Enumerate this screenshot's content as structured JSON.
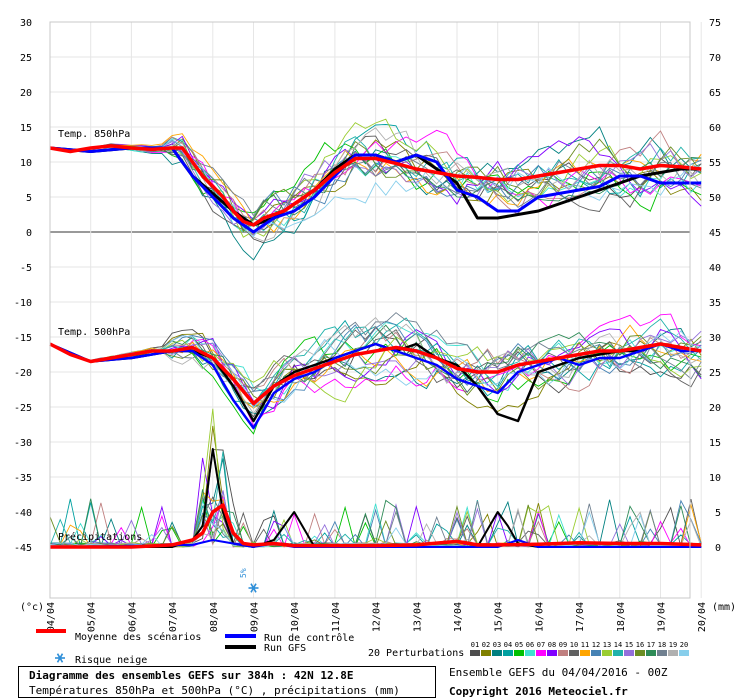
{
  "chart_data": {
    "type": "line",
    "x_labels": [
      "04/04",
      "05/04",
      "06/04",
      "07/04",
      "08/04",
      "09/04",
      "10/04",
      "11/04",
      "12/04",
      "13/04",
      "14/04",
      "15/04",
      "16/04",
      "17/04",
      "18/04",
      "19/04",
      "20/04"
    ],
    "left_axis": {
      "unit": "(°c)",
      "ticks": [
        30,
        25,
        20,
        15,
        10,
        5,
        0,
        -5,
        -10,
        -15,
        -20,
        -25,
        -30,
        -35,
        -40,
        -45
      ],
      "range": [
        -45,
        30
      ]
    },
    "right_axis": {
      "unit": "(mm)",
      "ticks": [
        75,
        70,
        65,
        60,
        55,
        50,
        45,
        40,
        35,
        30,
        25,
        20,
        15,
        10,
        5,
        0
      ],
      "range": [
        0,
        75
      ]
    },
    "panel_labels": {
      "t850": "Temp. 850hPa",
      "t500": "Temp. 500hPa",
      "precip": "Précipitations"
    },
    "snow_marker": {
      "text": "5%",
      "day": 5.0
    },
    "series": {
      "t850_mean": {
        "name": "Moyenne des scénarios",
        "color": "#ff0000",
        "days": [
          0,
          0.5,
          1,
          1.5,
          2,
          2.5,
          3,
          3.25,
          3.5,
          3.75,
          4,
          4.25,
          4.5,
          4.75,
          5,
          5.25,
          5.5,
          5.75,
          6,
          6.5,
          7,
          7.5,
          8,
          8.5,
          9,
          9.5,
          10,
          10.5,
          11,
          11.5,
          12,
          12.5,
          13,
          13.5,
          14,
          14.5,
          15,
          15.5,
          16
        ],
        "values": [
          12,
          11.5,
          12,
          12.3,
          12,
          11.8,
          12,
          12,
          10,
          8,
          6.5,
          5,
          3,
          1.5,
          1,
          2,
          2.5,
          3,
          4,
          6,
          8.5,
          10.5,
          10.5,
          9.8,
          9,
          8.5,
          8,
          7.8,
          7.5,
          7.5,
          8,
          8.5,
          9,
          9.5,
          9.5,
          9,
          9.5,
          9.3,
          9
        ]
      },
      "t850_control": {
        "name": "Run de contrôle",
        "color": "#0000ff",
        "days": [
          0,
          1,
          2,
          3,
          3.5,
          4,
          4.5,
          5,
          5.5,
          6,
          6.5,
          7,
          7.5,
          8,
          8.5,
          9,
          9.5,
          10,
          10.5,
          11,
          11.5,
          12,
          12.5,
          13,
          13.5,
          14,
          14.5,
          15,
          15.5,
          16
        ],
        "values": [
          12,
          11.5,
          12,
          12,
          8,
          5,
          2,
          0,
          2,
          3,
          5,
          8,
          11,
          11,
          10,
          11,
          10,
          6,
          5,
          3,
          3,
          5,
          5.5,
          6,
          6.5,
          8,
          8,
          7,
          7,
          7
        ]
      },
      "t850_gfs": {
        "name": "Run GFS",
        "color": "#000000",
        "days": [
          0,
          1,
          2,
          3,
          3.5,
          4,
          4.5,
          5,
          5.5,
          6,
          6.5,
          7,
          7.5,
          8,
          8.5,
          9,
          9.5,
          10,
          10.5,
          11,
          11.5,
          12,
          12.5,
          13,
          13.5,
          14,
          14.5,
          15,
          15.5,
          16
        ],
        "values": [
          12,
          11.5,
          12,
          12,
          8,
          5.5,
          3,
          1,
          2,
          4,
          6,
          9,
          11,
          11,
          10,
          11,
          9,
          7,
          2,
          2,
          2.5,
          3,
          4,
          5,
          6,
          7,
          8,
          8.5,
          9,
          9
        ]
      },
      "t500_mean": {
        "name": "Moyenne des scénarios",
        "color": "#ff0000",
        "days": [
          0,
          0.5,
          1,
          1.5,
          2,
          2.5,
          3,
          3.5,
          4,
          4.5,
          5,
          5.5,
          6,
          6.5,
          7,
          7.5,
          8,
          8.5,
          9,
          9.5,
          10,
          10.5,
          11,
          11.5,
          12,
          12.5,
          13,
          13.5,
          14,
          14.5,
          15,
          15.5,
          16
        ],
        "values": [
          -16,
          -17.5,
          -18.5,
          -18,
          -17.5,
          -17,
          -17,
          -16.5,
          -18,
          -21,
          -24.5,
          -22,
          -20.5,
          -19.5,
          -18.5,
          -17.5,
          -17,
          -16.5,
          -17,
          -18,
          -19.5,
          -20,
          -20,
          -19,
          -18.5,
          -18,
          -17.5,
          -17,
          -17,
          -16.5,
          -16,
          -16.5,
          -17
        ]
      },
      "t500_control": {
        "name": "Run de contrôle",
        "color": "#0000ff",
        "days": [
          0,
          1,
          2,
          3,
          3.5,
          4,
          4.5,
          5,
          5.5,
          6,
          6.5,
          7,
          7.5,
          8,
          8.5,
          9,
          9.5,
          10,
          10.5,
          11,
          11.5,
          12,
          12.5,
          13,
          13.5,
          14,
          14.5,
          15,
          15.5,
          16
        ],
        "values": [
          -16,
          -18.5,
          -18,
          -17,
          -17,
          -19,
          -24,
          -28,
          -23,
          -21,
          -20,
          -18,
          -17,
          -16,
          -17,
          -18,
          -19,
          -21,
          -22,
          -23,
          -20,
          -19,
          -18,
          -19,
          -18,
          -18,
          -17,
          -16,
          -17,
          -17
        ]
      },
      "t500_gfs": {
        "name": "Run GFS",
        "color": "#000000",
        "days": [
          0,
          1,
          2,
          3,
          3.5,
          4,
          4.5,
          5,
          5.5,
          6,
          6.5,
          7,
          7.5,
          8,
          8.5,
          9,
          9.5,
          10,
          10.5,
          11,
          11.5,
          12,
          12.5,
          13,
          13.5,
          14,
          14.5,
          15,
          15.5,
          16
        ],
        "values": [
          -16,
          -18.5,
          -18,
          -17,
          -17,
          -18,
          -22,
          -27,
          -22,
          -20,
          -19,
          -18,
          -17,
          -16,
          -17,
          -16,
          -18,
          -19,
          -22,
          -26,
          -27,
          -20,
          -19,
          -18,
          -17.5,
          -17,
          -17,
          -16,
          -16.5,
          -17
        ]
      },
      "precip_mean": {
        "name": "Moyenne des scénarios",
        "color": "#ff0000",
        "days": [
          0,
          1,
          2,
          3,
          3.5,
          3.75,
          4,
          4.25,
          4.5,
          4.75,
          5,
          5.5,
          6,
          7,
          8,
          9,
          10,
          10.5,
          11,
          12,
          13,
          14,
          15,
          16
        ],
        "values": [
          0,
          0,
          0,
          0.3,
          1,
          2,
          5,
          6,
          2,
          0.5,
          0.3,
          0.5,
          0.2,
          0.2,
          0.2,
          0.3,
          0.8,
          0.3,
          0.3,
          0.4,
          0.6,
          0.5,
          0.5,
          0.3
        ]
      },
      "precip_control": {
        "name": "Run de contrôle",
        "color": "#0000ff",
        "days": [
          0,
          3.5,
          4,
          4.5,
          5,
          5.5,
          6,
          7,
          8,
          9,
          10,
          11,
          11.5,
          12,
          13,
          14,
          15,
          16
        ],
        "values": [
          0,
          0.3,
          1,
          0.5,
          0,
          0.5,
          0,
          0,
          0,
          0,
          0,
          0,
          1,
          0,
          0,
          0,
          0,
          0
        ]
      },
      "precip_gfs": {
        "name": "Run GFS",
        "color": "#000000",
        "days": [
          0,
          3,
          3.5,
          3.75,
          4,
          4.25,
          4.5,
          5,
          5.5,
          6,
          6.5,
          7,
          8,
          9,
          10,
          10.5,
          11,
          11.25,
          11.5,
          12,
          13,
          14,
          15,
          16
        ],
        "values": [
          0,
          0,
          1,
          3,
          14,
          5,
          0.5,
          0,
          1,
          5,
          0,
          0,
          0,
          0,
          0,
          0,
          5,
          3,
          0.5,
          0,
          0,
          0,
          0,
          0
        ]
      }
    },
    "members": {
      "count_label": "20 Perturbations",
      "ids": [
        "01",
        "02",
        "03",
        "04",
        "05",
        "06",
        "07",
        "08",
        "09",
        "10",
        "11",
        "12",
        "13",
        "14",
        "15",
        "16",
        "17",
        "18",
        "19",
        "20"
      ],
      "colors": [
        "#4d4d4d",
        "#808000",
        "#008080",
        "#00a0a0",
        "#00c000",
        "#40e0d0",
        "#ff00ff",
        "#8000ff",
        "#c08080",
        "#606060",
        "#ffa500",
        "#4682b4",
        "#9acd32",
        "#20b2aa",
        "#9370db",
        "#6b8e23",
        "#2e8b57",
        "#708090",
        "#b0b0b0",
        "#87ceeb"
      ]
    }
  },
  "legend": {
    "mean": "Moyenne des scénarios",
    "control": "Run de contrôle",
    "gfs": "Run GFS",
    "snow": "Risque neige",
    "perturbations": "20 Perturbations"
  },
  "footer": {
    "title": "Diagramme des ensembles GEFS sur 384h : 42N 12.8E",
    "subtitle": "Températures 850hPa et 500hPa (°C) , précipitations (mm)",
    "run": "Ensemble GEFS du 04/04/2016 - 00Z",
    "copyright": "Copyright 2016 Meteociel.fr"
  }
}
